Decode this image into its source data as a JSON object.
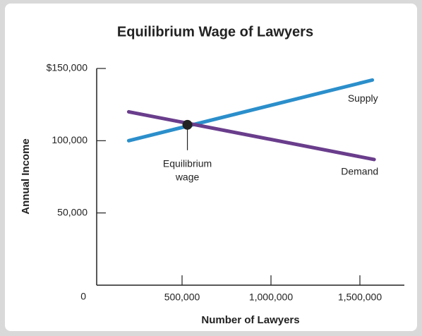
{
  "chart_data": {
    "type": "line",
    "title": "Equilibrium Wage of Lawyers",
    "x_label": "Number of Lawyers",
    "y_label": "Annual Income",
    "series": [
      {
        "name": "Supply",
        "color": "#2b8fcb",
        "x": [
          200000,
          1570000
        ],
        "values": [
          100000,
          142000
        ]
      },
      {
        "name": "Demand",
        "color": "#6a3d8c",
        "x": [
          200000,
          1580000
        ],
        "values": [
          120000,
          87000
        ]
      }
    ],
    "annotation": {
      "text": [
        "Equilibrium",
        "wage"
      ],
      "x": 530000,
      "y": 111000
    },
    "xlim": [
      0,
      1750000
    ],
    "ylim": [
      0,
      150000
    ],
    "xticks": [
      {
        "value": 500000,
        "label": "500,000"
      },
      {
        "value": 1000000,
        "label": "1,000,000"
      },
      {
        "value": 1500000,
        "label": "1,500,000"
      }
    ],
    "yticks": [
      0,
      {
        "value": 50000,
        "label": "50,000"
      },
      {
        "value": 100000,
        "label": "100,000"
      },
      {
        "value": 150000,
        "label": "$150,000"
      }
    ]
  }
}
